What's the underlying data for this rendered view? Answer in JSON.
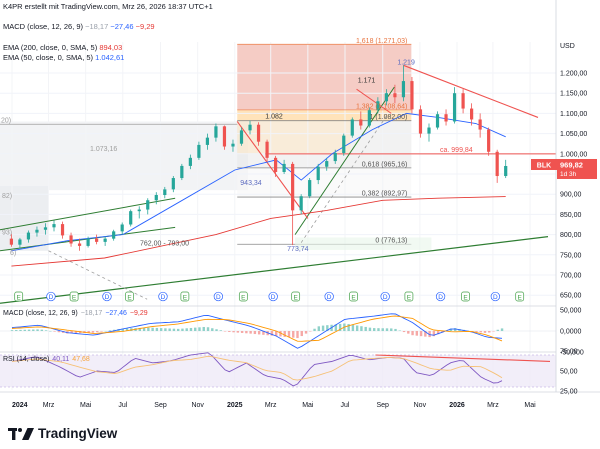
{
  "header": {
    "author_line": "K4PR erstellt mit TradingView.com, Mrz 26, 2026 18:37 UTC+1",
    "macd_label": "MACD (close, 12, 26, 9)",
    "macd_v1": "−18,17",
    "macd_v2": "−27,46",
    "macd_v3": "−9,29",
    "ema200_label": "EMA (200, close, 0, SMA, 5)",
    "ema200_value": "894,03",
    "ema50_label": "EMA (50, close, 0, SMA, 5)",
    "ema50_value": "1.042,61",
    "currency": "USD"
  },
  "price_axis": {
    "ticks": [
      "1.200,00",
      "1.150,00",
      "1.100,00",
      "1.050,00",
      "1.000,00",
      "950,00",
      "900,00",
      "850,00",
      "800,00",
      "750,00",
      "700,00",
      "650,00"
    ],
    "ticker": "BLK",
    "price_tag": "969,82",
    "timeframe_tag": "1d 3h"
  },
  "macd_axis": {
    "ticks": [
      "50,000",
      "0,0000",
      "-50,000"
    ]
  },
  "rsi_axis": {
    "ticks": [
      "75,00",
      "50,00",
      "25,00"
    ]
  },
  "rsi_label": {
    "name": "RSI (14, close)",
    "v1": "40,11",
    "v2": "47,68"
  },
  "time_axis": {
    "labels": [
      "2024",
      "Mrz",
      "Mai",
      "Jul",
      "Sep",
      "Nov",
      "2025",
      "Mrz",
      "Mai",
      "Jul",
      "Sep",
      "Nov",
      "2026",
      "Mrz",
      "Mai"
    ]
  },
  "annotations": {
    "fib_1618": "1,618 (1.271,03)",
    "fib_1382": "1,382 (1.108,64)",
    "fib_1": "1 (1.082,00)",
    "fib_0618": "0,618 (965,16)",
    "fib_0382": "0,382 (892,97)",
    "fib_0": "0 (776,13)",
    "res_line": "ca. 999,84",
    "high_1219": "1.219",
    "high_1171": "1.171",
    "level_1082": "1.082",
    "low_943": "943,34",
    "low_773": "773,74",
    "zone_762": "762,00 - 793,00",
    "old_1073": "1.073,16",
    "left_20": "20)",
    "left_82": "82)",
    "left_93": "93)",
    "left_6": "6)"
  },
  "earnings_markers": [
    "E",
    "D",
    "E",
    "D",
    "E",
    "D",
    "E",
    "D",
    "E",
    "D",
    "E",
    "D",
    "E",
    "D",
    "E",
    "D",
    "E"
  ],
  "logo": {
    "text": "TradingView"
  },
  "colors": {
    "up": "#26a69a",
    "down": "#ef5350",
    "ema50": "#2962ff",
    "ema200": "#e53935",
    "trend_green": "#2e7d32",
    "fib_orange_zone": "#ffe0b2",
    "fib_red_zone": "#f4c7bf"
  },
  "chart_data": {
    "type": "candlestick",
    "title": "BLK",
    "ylabel": "USD",
    "ylim": [
      640,
      1240
    ],
    "x_range": [
      "2023-12-15",
      "2026-05-31"
    ],
    "candles": [
      [
        "2023-12-31",
        790,
        802,
        770,
        775
      ],
      [
        "2024-01-14",
        775,
        792,
        765,
        788
      ],
      [
        "2024-01-28",
        788,
        810,
        780,
        805
      ],
      [
        "2024-02-11",
        805,
        820,
        795,
        812
      ],
      [
        "2024-02-25",
        812,
        828,
        800,
        818
      ],
      [
        "2024-03-10",
        818,
        835,
        808,
        826
      ],
      [
        "2024-03-24",
        826,
        832,
        790,
        798
      ],
      [
        "2024-04-07",
        798,
        805,
        770,
        778
      ],
      [
        "2024-04-21",
        778,
        790,
        760,
        772
      ],
      [
        "2024-05-05",
        772,
        795,
        768,
        790
      ],
      [
        "2024-05-19",
        790,
        800,
        776,
        782
      ],
      [
        "2024-06-02",
        782,
        795,
        772,
        790
      ],
      [
        "2024-06-16",
        790,
        812,
        785,
        808
      ],
      [
        "2024-06-30",
        808,
        830,
        800,
        825
      ],
      [
        "2024-07-14",
        825,
        862,
        820,
        858
      ],
      [
        "2024-07-28",
        858,
        870,
        840,
        862
      ],
      [
        "2024-08-11",
        862,
        890,
        850,
        885
      ],
      [
        "2024-08-25",
        885,
        905,
        875,
        898
      ],
      [
        "2024-09-08",
        898,
        918,
        890,
        912
      ],
      [
        "2024-09-22",
        912,
        945,
        905,
        940
      ],
      [
        "2024-10-06",
        940,
        975,
        935,
        970
      ],
      [
        "2024-10-20",
        970,
        998,
        962,
        990
      ],
      [
        "2024-11-03",
        990,
        1030,
        985,
        1022
      ],
      [
        "2024-11-17",
        1022,
        1050,
        1010,
        1040
      ],
      [
        "2024-12-01",
        1040,
        1075,
        1030,
        1068
      ],
      [
        "2024-12-15",
        1068,
        1070,
        1010,
        1018
      ],
      [
        "2024-12-29",
        1018,
        1035,
        1005,
        1025
      ],
      [
        "2025-01-12",
        1025,
        1065,
        1020,
        1058
      ],
      [
        "2025-01-26",
        1058,
        1082,
        1048,
        1072
      ],
      [
        "2025-02-09",
        1072,
        1078,
        1020,
        1030
      ],
      [
        "2025-02-23",
        1030,
        1035,
        980,
        990
      ],
      [
        "2025-03-09",
        990,
        995,
        943,
        955
      ],
      [
        "2025-03-23",
        955,
        985,
        950,
        975
      ],
      [
        "2025-04-06",
        975,
        980,
        774,
        860
      ],
      [
        "2025-04-20",
        860,
        900,
        850,
        895
      ],
      [
        "2025-05-04",
        895,
        940,
        890,
        935
      ],
      [
        "2025-05-18",
        935,
        975,
        925,
        968
      ],
      [
        "2025-06-01",
        968,
        990,
        958,
        982
      ],
      [
        "2025-06-15",
        982,
        1010,
        975,
        1002
      ],
      [
        "2025-06-29",
        1002,
        1050,
        995,
        1045
      ],
      [
        "2025-07-13",
        1045,
        1090,
        1040,
        1085
      ],
      [
        "2025-07-27",
        1085,
        1105,
        1060,
        1070
      ],
      [
        "2025-08-10",
        1070,
        1115,
        1065,
        1108
      ],
      [
        "2025-08-24",
        1108,
        1140,
        1100,
        1130
      ],
      [
        "2025-09-07",
        1130,
        1160,
        1120,
        1150
      ],
      [
        "2025-09-21",
        1150,
        1171,
        1125,
        1140
      ],
      [
        "2025-10-05",
        1140,
        1219,
        1130,
        1180
      ],
      [
        "2025-10-19",
        1180,
        1190,
        1100,
        1110
      ],
      [
        "2025-11-02",
        1110,
        1120,
        1040,
        1050
      ],
      [
        "2025-11-16",
        1050,
        1075,
        1030,
        1065
      ],
      [
        "2025-11-30",
        1065,
        1105,
        1060,
        1098
      ],
      [
        "2025-12-14",
        1098,
        1110,
        1070,
        1080
      ],
      [
        "2025-12-28",
        1080,
        1165,
        1075,
        1150
      ],
      [
        "2026-01-11",
        1150,
        1160,
        1100,
        1112
      ],
      [
        "2026-01-25",
        1112,
        1125,
        1070,
        1085
      ],
      [
        "2026-02-08",
        1085,
        1100,
        1040,
        1060
      ],
      [
        "2026-02-22",
        1060,
        1065,
        995,
        1005
      ],
      [
        "2026-03-08",
        1005,
        1010,
        928,
        945
      ],
      [
        "2026-03-22",
        945,
        985,
        940,
        969.82
      ]
    ],
    "fibonacci_levels": [
      {
        "ratio": "1,618",
        "price": 1271.03
      },
      {
        "ratio": "1,382",
        "price": 1108.64
      },
      {
        "ratio": "1",
        "price": 1082.0
      },
      {
        "ratio": "0,618",
        "price": 965.16
      },
      {
        "ratio": "0,382",
        "price": 892.97
      },
      {
        "ratio": "0",
        "price": 776.13
      }
    ],
    "horizontal_levels": [
      999.84,
      1073.16
    ],
    "support_zone": [
      762,
      793
    ],
    "ema200_last": 894.03,
    "ema50_last": 1042.61,
    "last_price": 969.82,
    "macd": {
      "macd": -18.17,
      "signal": -27.46,
      "histogram": -9.29,
      "ylim": [
        -60,
        60
      ]
    },
    "rsi": {
      "value": 40.11,
      "ma": 47.68,
      "ylim": [
        15,
        85
      ]
    }
  }
}
